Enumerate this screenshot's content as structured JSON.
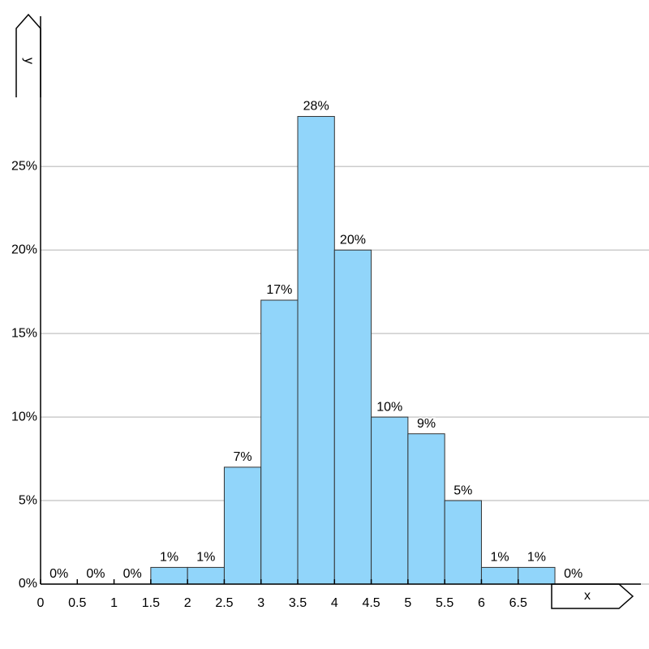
{
  "chart_data": {
    "type": "histogram",
    "x_label": "x",
    "y_label": "y",
    "bins": [
      0,
      0.5,
      1,
      1.5,
      2,
      2.5,
      3,
      3.5,
      4,
      4.5,
      5,
      5.5,
      6,
      6.5,
      7,
      7.5
    ],
    "values": [
      0,
      0,
      0,
      1,
      1,
      7,
      17,
      28,
      20,
      10,
      9,
      5,
      1,
      1,
      0
    ],
    "value_labels": [
      "0%",
      "0%",
      "0%",
      "1%",
      "1%",
      "7%",
      "17%",
      "28%",
      "20%",
      "10%",
      "9%",
      "5%",
      "1%",
      "1%",
      "0%"
    ],
    "color": "#91d5fa",
    "xlim": [
      0,
      8.17
    ],
    "ylim": [
      0,
      34
    ],
    "xticks": [
      0,
      0.5,
      1,
      1.5,
      2,
      2.5,
      3,
      3.5,
      4,
      4.5,
      5,
      5.5,
      6,
      6.5
    ],
    "yticks": [
      {
        "value": 0,
        "label": "0%"
      },
      {
        "value": 5,
        "label": "5%"
      },
      {
        "value": 10,
        "label": "10%"
      },
      {
        "value": 15,
        "label": "15%"
      },
      {
        "value": 20,
        "label": "20%"
      },
      {
        "value": 25,
        "label": "25%"
      }
    ],
    "grid": true
  }
}
